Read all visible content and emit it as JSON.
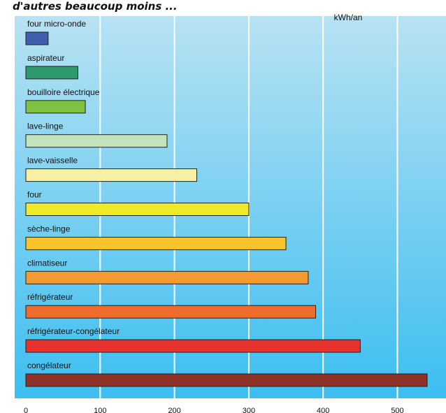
{
  "caption": "d'autres beaucoup moins ...",
  "chart_data": {
    "type": "bar",
    "orientation": "horizontal",
    "unit_label": "kWh/an",
    "categories": [
      "four micro-onde",
      "aspirateur",
      "bouilloire électrique",
      "lave-linge",
      "lave-vaisselle",
      "four",
      "sèche-linge",
      "climatiseur",
      "réfrigérateur",
      "réfrigérateur-congélateur",
      "congélateur"
    ],
    "values": [
      30,
      70,
      80,
      190,
      230,
      300,
      350,
      380,
      390,
      450,
      540
    ],
    "colors": [
      "#3f5fae",
      "#2e9a6d",
      "#7ec244",
      "#c4e3bd",
      "#f7f1a6",
      "#eeea2a",
      "#f8c32b",
      "#f49a33",
      "#ef6b2c",
      "#e8322e",
      "#8e3126"
    ],
    "x_ticks": [
      0,
      100,
      200,
      300,
      400,
      500
    ],
    "xlim": [
      0,
      565
    ],
    "grid": true
  }
}
